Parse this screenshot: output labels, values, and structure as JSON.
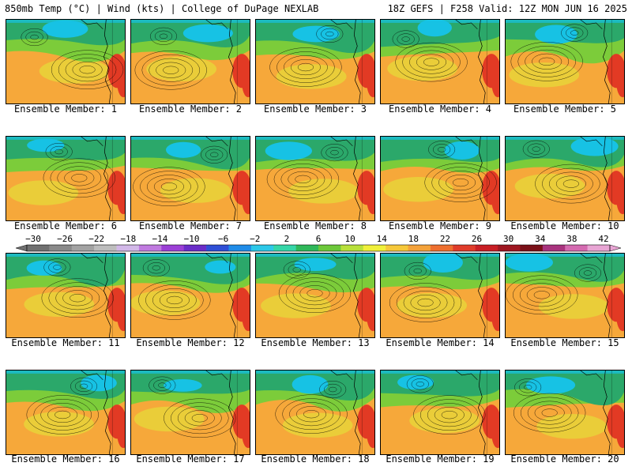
{
  "header": {
    "left": "850mb Temp (°C) | Wind (kts) | College of DuPage NEXLAB",
    "right": "18Z GEFS | F258 Valid: 12Z MON JUN 16 2025"
  },
  "members": [
    "Ensemble Member: 1",
    "Ensemble Member: 2",
    "Ensemble Member: 3",
    "Ensemble Member: 4",
    "Ensemble Member: 5",
    "Ensemble Member: 6",
    "Ensemble Member: 7",
    "Ensemble Member: 8",
    "Ensemble Member: 9",
    "Ensemble Member: 10",
    "Ensemble Member: 11",
    "Ensemble Member: 12",
    "Ensemble Member: 13",
    "Ensemble Member: 14",
    "Ensemble Member: 15",
    "Ensemble Member: 16",
    "Ensemble Member: 17",
    "Ensemble Member: 18",
    "Ensemble Member: 19",
    "Ensemble Member: 20"
  ],
  "colorbar": {
    "labels": [
      "−30",
      "−26",
      "−22",
      "−18",
      "−14",
      "−10",
      "−6",
      "−2",
      "2",
      "6",
      "10",
      "14",
      "18",
      "22",
      "26",
      "30",
      "34",
      "38",
      "42"
    ],
    "colors": [
      "#707070",
      "#8a8a8a",
      "#a3a3a3",
      "#bdbdbd",
      "#d2b8e8",
      "#c07ae0",
      "#9b3fd6",
      "#6a2cc8",
      "#2f4fd6",
      "#1f8ce8",
      "#2cc8e8",
      "#35d6a8",
      "#2fb85a",
      "#6cc83a",
      "#b8e03a",
      "#f0f03a",
      "#f6c83a",
      "#f4a23a",
      "#ee6f2f",
      "#e03c2a",
      "#c81e24",
      "#9e1620",
      "#7a1018",
      "#a8337e",
      "#d46ab0",
      "#e8a5d4"
    ]
  },
  "map_colors": {
    "cold": "#17c2e4",
    "cool": "#2ba86a",
    "mild": "#7ccc3a",
    "warm": "#e8d43a",
    "hot": "#f6a83a",
    "very_hot": "#e23a24"
  }
}
